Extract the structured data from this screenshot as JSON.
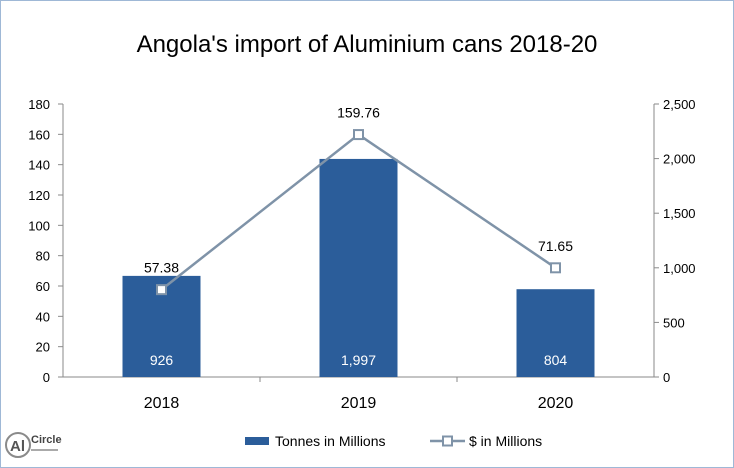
{
  "chart_data": {
    "type": "bar",
    "title": "Angola's import of Aluminium cans 2018-20",
    "categories": [
      "2018",
      "2019",
      "2020"
    ],
    "series": [
      {
        "name": "Tonnes in Millions",
        "chart": "bar",
        "axis": "right",
        "values": [
          926,
          1997,
          804
        ],
        "labels": [
          "926",
          "1,997",
          "804"
        ],
        "color": "#2b5d9a"
      },
      {
        "name": "$ in Millions",
        "chart": "line",
        "axis": "right",
        "values": [
          800,
          2220,
          1000
        ],
        "labels": [
          "57.38",
          "159.76",
          "71.65"
        ],
        "color": "#7f93a8"
      }
    ],
    "left_axis": {
      "min": 0,
      "max": 180,
      "step": 20,
      "ticks": [
        "0",
        "20",
        "40",
        "60",
        "80",
        "100",
        "120",
        "140",
        "160",
        "180"
      ]
    },
    "right_axis": {
      "min": 0,
      "max": 2500,
      "step": 500,
      "ticks": [
        "0",
        "500",
        "1,000",
        "1,500",
        "2,000",
        "2,500"
      ]
    },
    "grid": false,
    "legend_position": "bottom"
  },
  "logo": {
    "text": "AlCircle",
    "mark": "Al",
    "word": "Circle"
  },
  "colors": {
    "bar": "#2b5d9a",
    "line": "#7f93a8",
    "axis": "#8a8a8a",
    "frame": "#9fb8d6"
  }
}
